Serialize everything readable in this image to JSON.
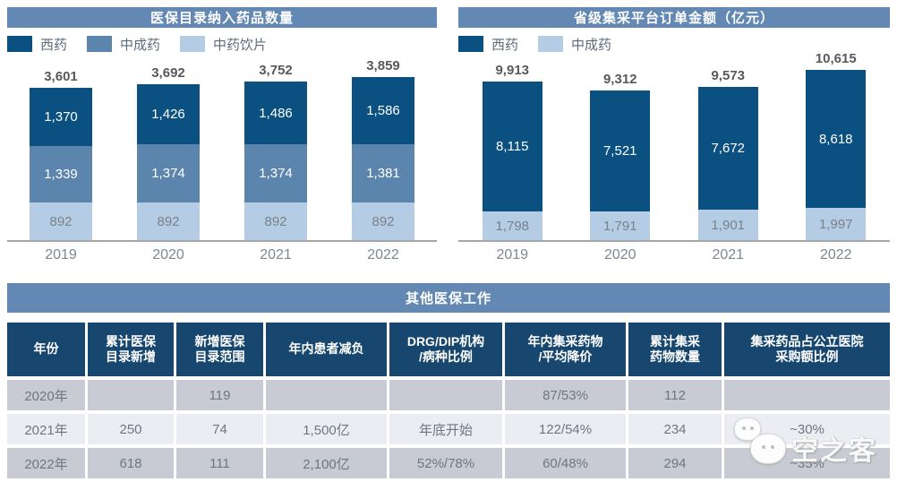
{
  "chart_data": [
    {
      "type": "bar",
      "stacked": true,
      "title": "医保目录纳入药品数量",
      "categories": [
        "2019",
        "2020",
        "2021",
        "2022"
      ],
      "series": [
        {
          "name": "西药",
          "values": [
            1370,
            1426,
            1486,
            1586
          ],
          "color": "#0a5080",
          "label_color": "#ffffff"
        },
        {
          "name": "中成药",
          "values": [
            1339,
            1374,
            1374,
            1381
          ],
          "color": "#5b85ad",
          "label_color": "#ffffff"
        },
        {
          "name": "中药饮片",
          "values": [
            892,
            892,
            892,
            892
          ],
          "color": "#b4cde4",
          "label_color": "#7a8189"
        }
      ],
      "totals": [
        3601,
        3692,
        3752,
        3859
      ],
      "xlabel": "",
      "ylabel": "",
      "ylim": [
        0,
        4000
      ],
      "grid": false,
      "legend_position": "top-left"
    },
    {
      "type": "bar",
      "stacked": true,
      "title": "省级集采平台订单金额（亿元）",
      "categories": [
        "2019",
        "2020",
        "2021",
        "2022"
      ],
      "series": [
        {
          "name": "西药",
          "values": [
            8115,
            7521,
            7672,
            8618
          ],
          "color": "#0a5080",
          "label_color": "#ffffff"
        },
        {
          "name": "中成药",
          "values": [
            1798,
            1791,
            1901,
            1997
          ],
          "color": "#b4cde4",
          "label_color": "#7a8189"
        }
      ],
      "totals": [
        9913,
        9312,
        9573,
        10615
      ],
      "xlabel": "",
      "ylabel": "",
      "ylim": [
        0,
        11000
      ],
      "grid": false,
      "legend_position": "top-left"
    }
  ],
  "table": {
    "title": "其他医保工作",
    "headers": [
      "年份",
      "累计医保\n目录新增",
      "新增医保\n目录范围",
      "年内患者减负",
      "DRG/DIP机构\n/病种比例",
      "年内集采药物\n/平均降价",
      "累计集采\n药物数量",
      "集采药品占公立医院\n采购额比例"
    ],
    "rows": [
      [
        "2020年",
        "",
        "119",
        "",
        "",
        "87/53%",
        "112",
        ""
      ],
      [
        "2021年",
        "250",
        "74",
        "1,500亿",
        "年底开始",
        "122/54%",
        "234",
        "~30%"
      ],
      [
        "2022年",
        "618",
        "111",
        "2,100亿",
        "52%/78%",
        "60/48%",
        "294",
        "~35%"
      ]
    ]
  },
  "watermark": {
    "text": "空之客",
    "icon": "wechat-icon"
  },
  "colors": {
    "banner_blue": "#6288b3",
    "dark_navy": "#0a5080",
    "medium_blue": "#5b85ad",
    "light_blue": "#b4cde4",
    "table_header_navy": "#17476f",
    "row_gray": "#c8cbd3",
    "row_light": "#ebedf2",
    "total_label_gray": "#595959",
    "axis_gray": "#a6a6a6"
  }
}
